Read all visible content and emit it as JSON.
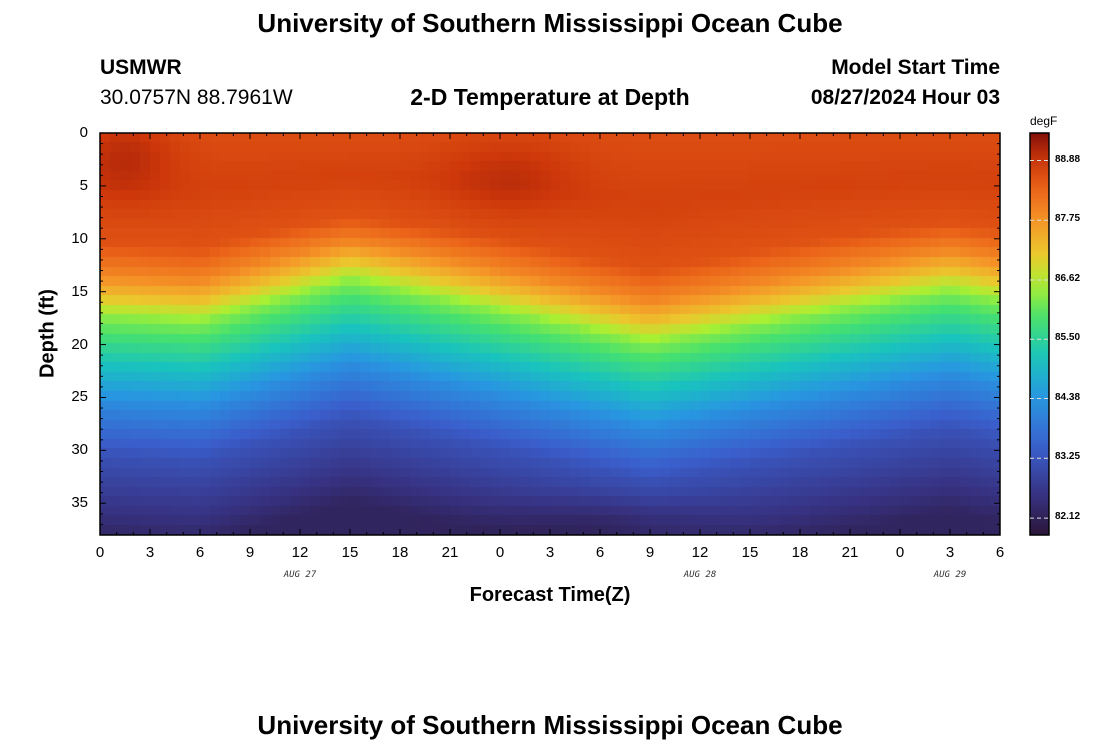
{
  "header": {
    "title_top": "University of Southern Mississippi Ocean Cube",
    "title_bottom": "University of Southern Mississippi Ocean Cube",
    "station": "USMWR",
    "coords": "30.0757N  88.7961W",
    "plot_title": "2-D Temperature at Depth",
    "model_start_label": "Model Start Time",
    "model_start_value": "08/27/2024 Hour 03"
  },
  "chart_data": {
    "type": "heatmap",
    "title": "2-D Temperature at Depth",
    "xlabel": "Forecast Time(Z)",
    "ylabel": "Depth (ft)",
    "x_hours_range": [
      0,
      54
    ],
    "x_tick_labels": [
      "0",
      "3",
      "6",
      "9",
      "12",
      "15",
      "18",
      "21",
      "0",
      "3",
      "6",
      "9",
      "12",
      "15",
      "18",
      "21",
      "0",
      "3",
      "6"
    ],
    "date_labels": [
      {
        "label": "AUG 27",
        "hour": 12
      },
      {
        "label": "AUG 28",
        "hour": 36
      },
      {
        "label": "AUG 29",
        "hour": 51
      }
    ],
    "y_range": [
      0,
      38
    ],
    "y_ticks": [
      0,
      5,
      10,
      15,
      20,
      25,
      30,
      35
    ],
    "colorbar": {
      "unit": "degF",
      "range": [
        81.8,
        89.4
      ],
      "ticks": [
        82.12,
        83.25,
        84.38,
        85.5,
        86.62,
        87.75,
        88.88
      ],
      "tick_labels": [
        "82.12",
        "83.25",
        "84.38",
        "85.50",
        "86.62",
        "87.75",
        "88.88"
      ]
    },
    "depth_profile_ft": [
      0,
      5,
      10,
      13,
      15,
      17,
      20,
      25,
      30,
      35,
      38
    ],
    "temperature_profile_degF": [
      88.6,
      88.75,
      88.55,
      87.9,
      87.2,
      86.3,
      85.5,
      84.2,
      83.2,
      82.6,
      82.2
    ],
    "thermocline_shift_ft": [
      {
        "hour": 0,
        "shift": 0.5
      },
      {
        "hour": 6,
        "shift": 1.0
      },
      {
        "hour": 15,
        "shift": -3.0
      },
      {
        "hour": 24,
        "shift": 0.0
      },
      {
        "hour": 33,
        "shift": 3.0
      },
      {
        "hour": 42,
        "shift": 0.5
      },
      {
        "hour": 51,
        "shift": -2.0
      },
      {
        "hour": 54,
        "shift": -1.0
      }
    ]
  }
}
